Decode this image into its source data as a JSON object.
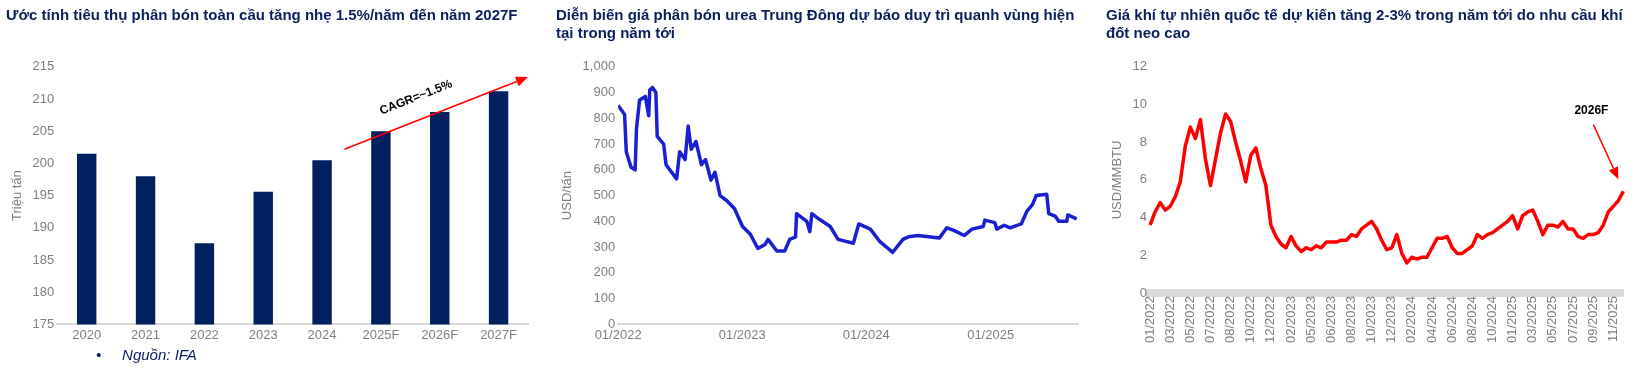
{
  "chart_data": [
    {
      "type": "bar",
      "title": "Ước tính tiêu thụ phân bón toàn cầu tăng nhẹ 1.5%/năm đến năm 2027F",
      "ylabel": "Triệu tấn",
      "categories": [
        "2020",
        "2021",
        "2022",
        "2023",
        "2024",
        "2025F",
        "2026F",
        "2027F"
      ],
      "values": [
        201.5,
        198,
        187.6,
        195.6,
        200.5,
        205,
        208,
        211.2
      ],
      "color": "#002060",
      "ylim": [
        175,
        215
      ],
      "yticks": [
        175,
        180,
        185,
        190,
        195,
        200,
        205,
        210,
        215
      ],
      "annotations": [
        "CAGR=~1.5%",
        "•     Nguồn: IFA"
      ]
    },
    {
      "type": "line",
      "title": "Diễn biến giá phân bón urea Trung Đông dự báo duy trì quanh vùng hiện tại trong năm tới",
      "ylabel": "USD/tấn",
      "color": "#1a1fd0",
      "x": [
        "2022-01-01",
        "2022-01-20",
        "2022-01-25",
        "2022-02-08",
        "2022-02-20",
        "2022-02-24",
        "2022-03-05",
        "2022-03-22",
        "2022-04-01",
        "2022-04-04",
        "2022-04-12",
        "2022-04-22",
        "2022-04-26",
        "2022-05-15",
        "2022-05-22",
        "2022-06-22",
        "2022-07-01",
        "2022-07-17",
        "2022-07-26",
        "2022-08-04",
        "2022-08-18",
        "2022-09-03",
        "2022-09-15",
        "2022-10-01",
        "2022-10-13",
        "2022-10-28",
        "2022-11-17",
        "2022-12-09",
        "2023-01-02",
        "2023-01-25",
        "2023-02-16",
        "2023-03-09",
        "2023-03-18",
        "2023-04-13",
        "2023-05-06",
        "2023-05-21",
        "2023-06-07",
        "2023-06-10",
        "2023-07-10",
        "2023-07-19",
        "2023-07-25",
        "2023-08-14",
        "2023-09-17",
        "2023-10-10",
        "2023-11-24",
        "2023-12-10",
        "2024-01-13",
        "2024-02-11",
        "2024-03-19",
        "2024-04-18",
        "2024-05-04",
        "2024-06-01",
        "2024-08-03",
        "2024-08-25",
        "2024-09-15",
        "2024-10-15",
        "2024-11-07",
        "2024-12-10",
        "2024-12-15",
        "2025-01-13",
        "2025-01-19",
        "2025-02-10",
        "2025-02-27",
        "2025-04-01",
        "2025-04-18",
        "2025-05-04",
        "2025-05-15",
        "2025-06-15",
        "2025-06-21",
        "2025-07-10",
        "2025-07-21",
        "2025-08-13",
        "2025-08-16",
        "2025-09-11"
      ],
      "values": [
        850,
        815,
        670,
        610,
        600,
        760,
        870,
        885,
        810,
        910,
        920,
        900,
        730,
        700,
        620,
        565,
        670,
        640,
        770,
        680,
        710,
        620,
        640,
        560,
        590,
        500,
        480,
        450,
        380,
        350,
        295,
        310,
        330,
        285,
        285,
        330,
        340,
        430,
        400,
        360,
        430,
        410,
        380,
        330,
        315,
        390,
        370,
        320,
        280,
        330,
        340,
        345,
        335,
        375,
        365,
        345,
        370,
        380,
        405,
        395,
        370,
        385,
        375,
        390,
        440,
        465,
        500,
        505,
        430,
        420,
        400,
        400,
        425,
        410
      ],
      "xlim": [
        "2022-01-01",
        "2025-09-15"
      ],
      "xticks": [
        {
          "value": "2022-01-01",
          "label": "01/2022"
        },
        {
          "value": "2023-01-01",
          "label": "01/2023"
        },
        {
          "value": "2024-01-01",
          "label": "01/2024"
        },
        {
          "value": "2025-01-01",
          "label": "01/2025"
        }
      ],
      "ylim": [
        0,
        1000
      ],
      "yticks": [
        0,
        100,
        200,
        300,
        400,
        500,
        600,
        700,
        800,
        900,
        {
          "value": 1000,
          "label": "1,000"
        }
      ]
    },
    {
      "type": "line",
      "title": "Giá khí tự nhiên quốc tế dự kiến tăng 2-3% trong năm tới do nhu cầu khí đốt neo cao",
      "ylabel": "USD/MMBTU",
      "color": "#ff0000",
      "categories": [
        "01/2022",
        null,
        null,
        null,
        "03/2022",
        null,
        null,
        null,
        "05/2022",
        null,
        null,
        null,
        "07/2022",
        null,
        null,
        null,
        "08/2022",
        null,
        null,
        null,
        "10/2022",
        null,
        null,
        null,
        "12/2022",
        null,
        null,
        null,
        "02/2023",
        null,
        null,
        null,
        "05/2023",
        null,
        null,
        null,
        "06/2023",
        null,
        null,
        null,
        "08/2023",
        null,
        null,
        null,
        "10/2023",
        null,
        null,
        null,
        "12/2023",
        null,
        null,
        null,
        "02/2024",
        null,
        null,
        null,
        "04/2024",
        null,
        null,
        null,
        "06/2024",
        null,
        null,
        null,
        "08/2024",
        null,
        null,
        null,
        "10/2024",
        null,
        null,
        null,
        "01/2025",
        null,
        null,
        null,
        "03/2025",
        null,
        null,
        null,
        "05/2025",
        null,
        null,
        null,
        "07/2025",
        null,
        null,
        null,
        "09/2025",
        null,
        null,
        null,
        "11/2025",
        null,
        null
      ],
      "values": [
        3.6,
        4.3,
        4.8,
        4.4,
        4.6,
        5.1,
        5.9,
        7.8,
        8.8,
        8.2,
        9.2,
        7.1,
        5.7,
        7.1,
        8.5,
        9.5,
        9.1,
        8.0,
        7.0,
        5.9,
        7.3,
        7.7,
        6.6,
        5.7,
        3.6,
        3.0,
        2.6,
        2.4,
        3.0,
        2.5,
        2.2,
        2.4,
        2.3,
        2.5,
        2.4,
        2.7,
        2.7,
        2.7,
        2.8,
        2.8,
        3.1,
        3.0,
        3.4,
        3.6,
        3.8,
        3.4,
        2.8,
        2.3,
        2.4,
        3.1,
        2.1,
        1.6,
        1.9,
        1.8,
        1.9,
        1.9,
        2.4,
        2.9,
        2.9,
        3.0,
        2.4,
        2.1,
        2.1,
        2.3,
        2.5,
        3.1,
        2.9,
        3.1,
        3.2,
        3.4,
        3.6,
        3.8,
        4.1,
        3.4,
        4.1,
        4.3,
        4.4,
        3.8,
        3.1,
        3.6,
        3.6,
        3.5,
        3.8,
        3.4,
        3.4,
        3.0,
        2.9,
        3.1,
        3.1,
        3.2,
        3.6,
        4.3,
        4.6,
        4.9,
        5.4
      ],
      "ylim": [
        0,
        12
      ],
      "yticks": [
        0,
        2,
        4,
        6,
        8,
        10,
        12
      ],
      "annotations": [
        "2026F"
      ]
    }
  ]
}
